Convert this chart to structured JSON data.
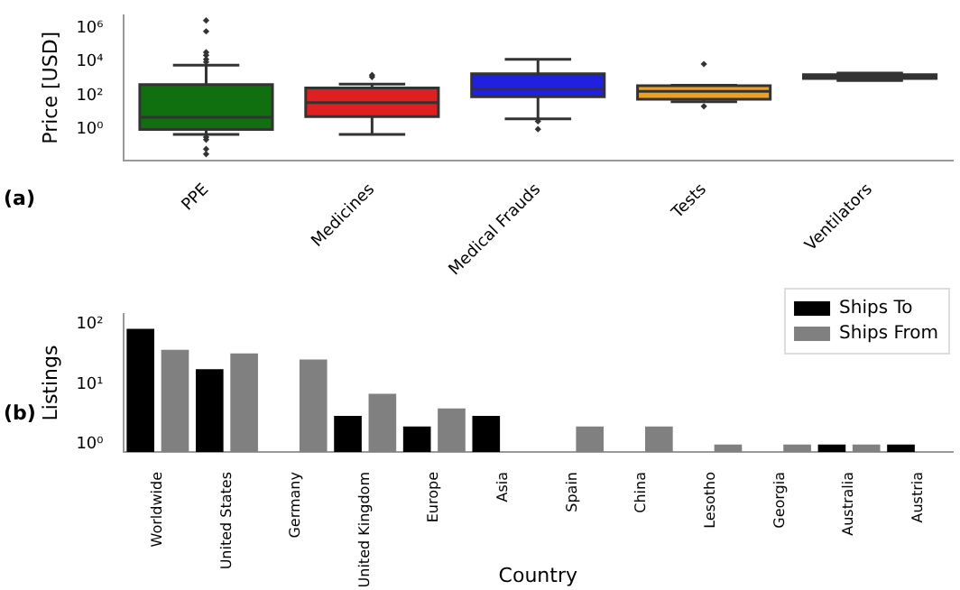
{
  "chart_data": [
    {
      "type": "box",
      "categories": [
        "PPE",
        "Medicines",
        "Medical Frauds",
        "Tests",
        "Ventilators"
      ],
      "colors": [
        "#107010",
        "#e02020",
        "#2020e0",
        "#f0a020",
        "#303030"
      ],
      "boxes": [
        {
          "low": 0.52,
          "q1": 1,
          "median": 5.3,
          "q3": 460,
          "high": 6500,
          "outliers": [
            2900000,
            660000,
            38000,
            25000,
            14500,
            10000,
            0.36,
            0.25,
            0.07,
            0.035
          ]
        },
        {
          "low": 0.52,
          "q1": 5.9,
          "median": 39,
          "q3": 290,
          "high": 490,
          "outliers": [
            1700,
            1300
          ]
        },
        {
          "low": 4.3,
          "q1": 87,
          "median": 260,
          "q3": 2000,
          "high": 14500,
          "outliers": [
            3.1,
            1.05
          ]
        },
        {
          "low": 44,
          "q1": 63,
          "median": 185,
          "q3": 400,
          "high": 420,
          "outliers": [
            7600,
            24
          ]
        },
        {
          "low": 800,
          "q1": 1050,
          "median": 1350,
          "q3": 1780,
          "high": 2200
        }
      ],
      "ylabel": "Price [USD]",
      "log": true,
      "ylim": [
        0.015,
        6000000
      ],
      "yticks": [
        {
          "value": 1,
          "label": "10⁰"
        },
        {
          "value": 100,
          "label": "10²"
        },
        {
          "value": 10000,
          "label": "10⁴"
        },
        {
          "value": 1000000,
          "label": "10⁶"
        }
      ],
      "annotations": [
        "(a)"
      ]
    },
    {
      "type": "bar",
      "categories": [
        "Worldwide",
        "United States",
        "Germany",
        "United Kingdom",
        "Europe",
        "Asia",
        "Spain",
        "China",
        "Lesotho",
        "Georgia",
        "Australia",
        "Austria"
      ],
      "series": [
        {
          "name": "Ships To",
          "color": "#000000",
          "values": [
            85,
            18,
            null,
            3,
            2,
            3,
            null,
            null,
            null,
            null,
            1,
            1
          ]
        },
        {
          "name": "Ships From",
          "color": "#808080",
          "values": [
            38,
            33,
            26,
            7,
            4,
            null,
            2,
            2,
            1,
            1,
            1,
            null
          ]
        }
      ],
      "xlabel": "Country",
      "ylabel": "Listings",
      "log": true,
      "ylim": [
        0.75,
        150
      ],
      "yticks": [
        {
          "value": 1,
          "label": "10⁰"
        },
        {
          "value": 10,
          "label": "10¹"
        },
        {
          "value": 100,
          "label": "10²"
        }
      ],
      "legend": "top right",
      "annotations": [
        "(b)"
      ]
    }
  ]
}
